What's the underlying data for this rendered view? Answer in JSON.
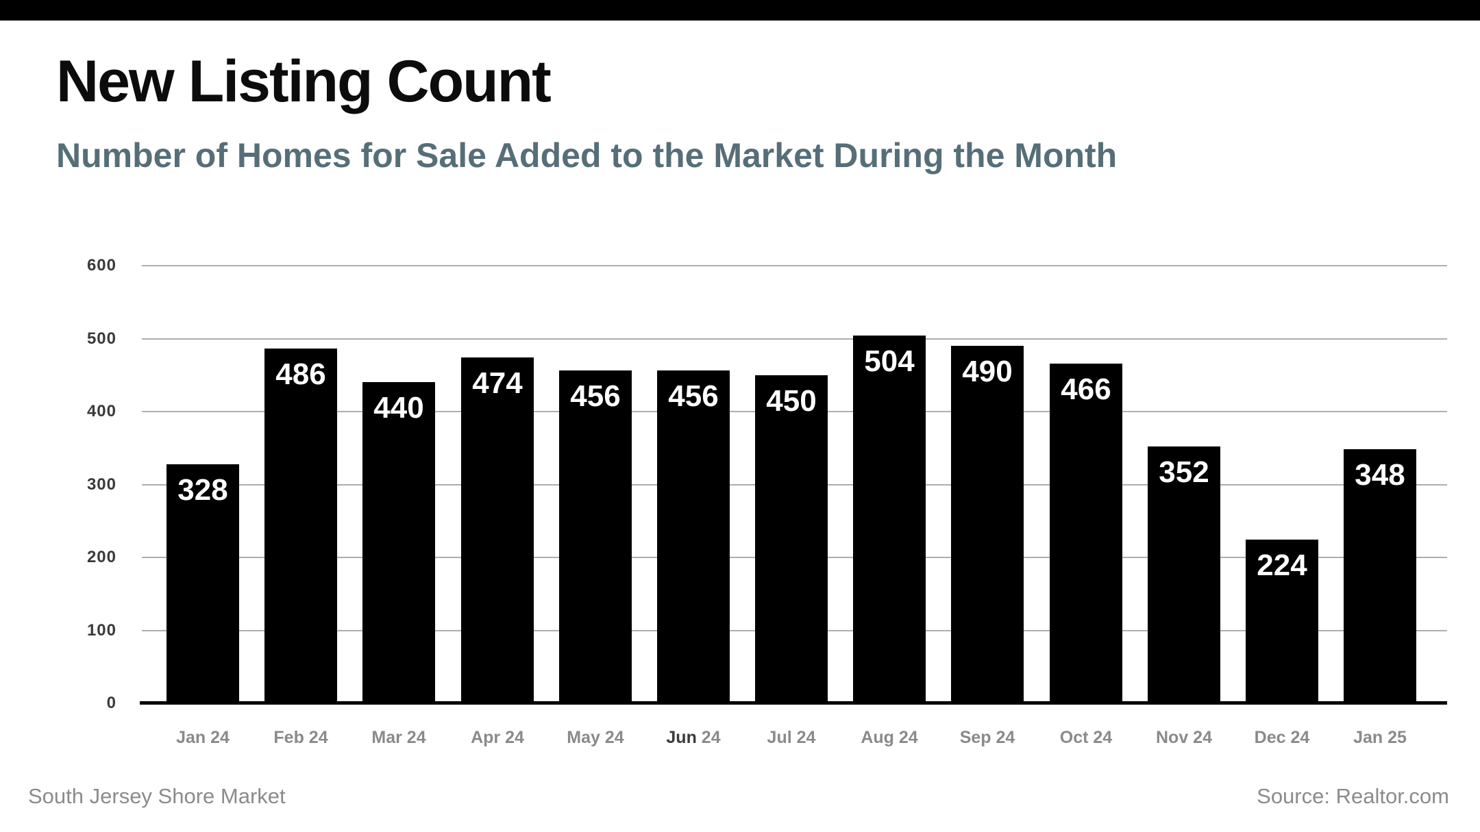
{
  "page": {
    "title": "New Listing Count",
    "subtitle": "Number of Homes for Sale Added to the Market During the Month",
    "footer_left": "South Jersey Shore Market",
    "footer_right": "Source: Realtor.com"
  },
  "colors": {
    "top_bar": "#000000",
    "title": "#0c0c0c",
    "subtitle": "#566e78",
    "bar": "#000000",
    "bar_value_label": "#ffffff",
    "gridline": "#aeaeae",
    "baseline": "#000000",
    "y_axis_label": "#3a3a3a",
    "x_axis_label": "#8a8a8a",
    "x_axis_label_highlight": "#3b3b3b",
    "footer": "#8b8b8b"
  },
  "chart_data": {
    "type": "bar",
    "title": "New Listing Count",
    "subtitle": "Number of Homes for Sale Added to the Market During the Month",
    "categories": [
      "Jan 24",
      "Feb 24",
      "Mar 24",
      "Apr 24",
      "May 24",
      "Jun 24",
      "Jul 24",
      "Aug 24",
      "Sep 24",
      "Oct 24",
      "Nov 24",
      "Dec 24",
      "Jan 25"
    ],
    "values": [
      328,
      486,
      440,
      474,
      456,
      456,
      450,
      504,
      490,
      466,
      352,
      224,
      348
    ],
    "value_labels_position": "inside-top",
    "highlighted_category": "Jun 24",
    "xlabel": "",
    "ylabel": "",
    "ylim": [
      0,
      600
    ],
    "yticks": [
      "0",
      "100",
      "200",
      "300",
      "400",
      "500",
      "600"
    ],
    "grid": true,
    "legend": "none"
  }
}
